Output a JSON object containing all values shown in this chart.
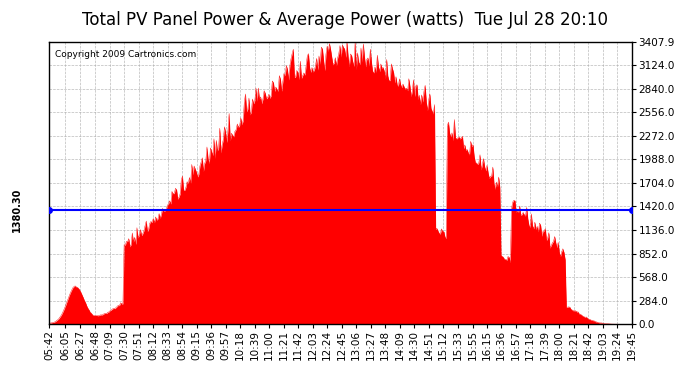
{
  "title": "Total PV Panel Power & Average Power (watts)  Tue Jul 28 20:10",
  "copyright": "Copyright 2009 Cartronics.com",
  "avg_power": 1380.3,
  "avg_label": "1380.30",
  "yticks": [
    0.0,
    284.0,
    568.0,
    852.0,
    1136.0,
    1420.0,
    1704.0,
    1988.0,
    2272.0,
    2556.0,
    2840.0,
    3124.0,
    3407.9
  ],
  "ymax": 3407.9,
  "ymin": 0.0,
  "fill_color": "#FF0000",
  "line_color": "#0000FF",
  "bg_color": "#FFFFFF",
  "plot_bg_color": "#FFFFFF",
  "grid_color": "#AAAAAA",
  "title_fontsize": 12,
  "tick_fontsize": 7.5,
  "xtick_labels": [
    "05:42",
    "06:05",
    "06:27",
    "06:48",
    "07:09",
    "07:30",
    "07:51",
    "08:12",
    "08:33",
    "08:54",
    "09:15",
    "09:36",
    "09:57",
    "10:18",
    "10:39",
    "11:00",
    "11:21",
    "11:42",
    "12:03",
    "12:24",
    "12:45",
    "13:06",
    "13:27",
    "13:48",
    "14:09",
    "14:30",
    "14:51",
    "15:12",
    "15:33",
    "15:55",
    "16:15",
    "16:36",
    "16:57",
    "17:18",
    "17:39",
    "18:00",
    "18:21",
    "18:42",
    "19:03",
    "19:24",
    "19:45"
  ]
}
